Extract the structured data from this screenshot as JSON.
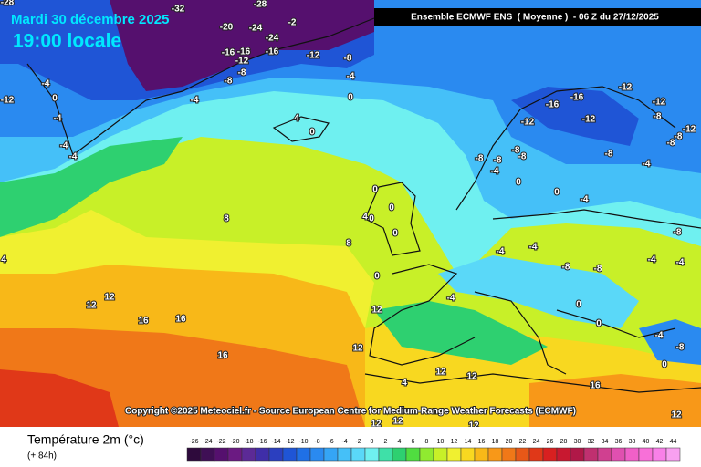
{
  "header": {
    "date": "Mardi 30 décembre 2025",
    "time": "19:00 locale",
    "model": "Ensemble ECMWF ENS  ( Moyenne )  - 06 Z du 27/12/2025"
  },
  "copyright": "Copyright ©2025 Meteociel.fr - Source European Centre for Medium-Range Weather Forecasts (ECMWF)",
  "footer": {
    "title": "Température 2m (°c)",
    "lead": "(+ 84h)"
  },
  "legend": {
    "ticks": [
      -26,
      -24,
      -22,
      -20,
      -18,
      -16,
      -14,
      -12,
      -10,
      -8,
      -6,
      -4,
      -2,
      0,
      2,
      4,
      6,
      8,
      10,
      12,
      14,
      16,
      18,
      20,
      22,
      24,
      26,
      28,
      30,
      32,
      34,
      36,
      38,
      40,
      42,
      44
    ],
    "colors": [
      "#2e0a3c",
      "#3f0f55",
      "#55106e",
      "#6b1a82",
      "#5c2a96",
      "#3f2ea8",
      "#2b3fbf",
      "#1f55d6",
      "#1f70e6",
      "#2a8af0",
      "#35a5f5",
      "#45c0f8",
      "#5ad8f8",
      "#6ff0f0",
      "#3fe0a8",
      "#2ed070",
      "#50dd40",
      "#90ea30",
      "#c8f028",
      "#f0f030",
      "#f8d820",
      "#f8b818",
      "#f89818",
      "#f07818",
      "#e85818",
      "#e03818",
      "#d82020",
      "#c81830",
      "#b01848",
      "#c03070",
      "#d04090",
      "#e050b0",
      "#f060c8",
      "#f870d8",
      "#f880e8",
      "#f8a0f0"
    ]
  },
  "map_labels": [
    -28,
    -32,
    -28,
    -20,
    -24,
    -2,
    -24,
    -16,
    -16,
    -12,
    -16,
    -8,
    -8,
    -12,
    -8,
    -4,
    -4,
    0,
    -12,
    -4,
    0,
    -4,
    -4,
    -4,
    4,
    0,
    8,
    -16,
    -12,
    -12,
    -12,
    -16,
    -12,
    -8,
    -12,
    -8,
    -8,
    -8,
    -8,
    -8,
    -8,
    -8,
    -4,
    -4,
    0,
    0,
    -4,
    0,
    0,
    0,
    4,
    0,
    8,
    0,
    4,
    12,
    12,
    16,
    16,
    16,
    12,
    12,
    -4,
    -4,
    -4,
    -8,
    -8,
    -4,
    -4,
    -8,
    0,
    0,
    -4,
    -8,
    0,
    12,
    12,
    4,
    12,
    12,
    12,
    12,
    16
  ]
}
